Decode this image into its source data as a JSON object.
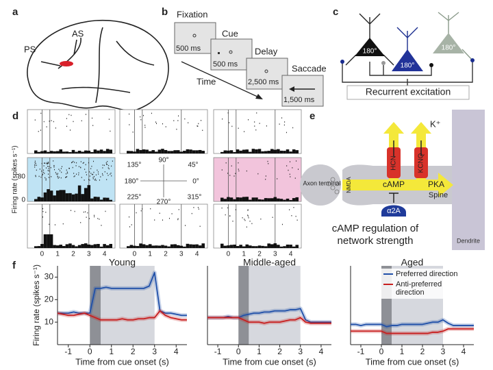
{
  "figure": {
    "a": {
      "label": "a",
      "texts": [
        "PS",
        "AS"
      ]
    },
    "b": {
      "label": "b",
      "epochs": [
        {
          "name": "Fixation",
          "duration": "500 ms"
        },
        {
          "name": "Cue",
          "duration": "500 ms"
        },
        {
          "name": "Delay",
          "duration": "2,500 ms"
        },
        {
          "name": "Saccade",
          "duration": "1,500 ms"
        }
      ],
      "time_label": "Time"
    },
    "c": {
      "label": "c",
      "neuron_labels": [
        "180°",
        "180°",
        "180°"
      ],
      "caption": "Recurrent excitation"
    },
    "d": {
      "label": "d",
      "y_label": "Firing rate (spikes s⁻¹)",
      "yticks": [
        "80",
        "0"
      ],
      "xticks": [
        "0",
        "1",
        "2",
        "3",
        "4"
      ],
      "directions": [
        "90°",
        "45°",
        "0°",
        "315°",
        "270°",
        "225°",
        "180°",
        "135°"
      ]
    },
    "e": {
      "label": "e",
      "ion": "K⁺",
      "channels": [
        "HCN",
        "KCNQ"
      ],
      "axon": "Axon terminal",
      "receptor": "NMDA",
      "messenger": "cAMP",
      "kinase": "PKA",
      "spine": "Spine",
      "alpha": "α2A",
      "caption": [
        "cAMP regulation of",
        "network strength"
      ],
      "dendrite": "Dendrite"
    },
    "f": {
      "label": "f"
    }
  },
  "chart_data": [
    {
      "type": "line",
      "title": "Young",
      "x_label": "Time from cue onset (s)",
      "y_label": "Firing rate (spikes s⁻¹)",
      "xlim": [
        -1.5,
        4.5
      ],
      "xticks": [
        -1,
        0,
        1,
        2,
        3,
        4
      ],
      "ylim": [
        0,
        35
      ],
      "yticks": [
        10,
        20,
        30
      ],
      "cue": [
        0,
        0.5
      ],
      "delay": [
        0.5,
        3
      ],
      "x": [
        -1.5,
        -1.25,
        -1,
        -0.75,
        -0.5,
        -0.25,
        0,
        0.25,
        0.5,
        0.75,
        1,
        1.25,
        1.5,
        1.75,
        2,
        2.25,
        2.5,
        2.75,
        3,
        3.25,
        3.5,
        3.75,
        4,
        4.25,
        4.5
      ],
      "series": [
        {
          "name": "Preferred direction",
          "color": "#1f4fa8",
          "values": [
            14,
            14,
            14,
            14.5,
            14,
            14,
            14,
            25,
            25,
            25.5,
            25,
            25,
            25,
            25,
            25,
            25,
            25,
            26,
            32,
            15,
            14,
            14,
            13.5,
            13,
            13
          ]
        },
        {
          "name": "Anti-preferred direction",
          "color": "#c81e1e",
          "values": [
            14,
            13.5,
            13,
            13,
            13.5,
            14,
            13,
            12,
            11,
            11,
            11,
            11,
            11.5,
            11,
            11,
            11.5,
            11.5,
            12,
            12,
            15,
            13,
            12,
            11.5,
            11,
            11
          ]
        }
      ]
    },
    {
      "type": "line",
      "title": "Middle-aged",
      "x_label": "Time from cue onset (s)",
      "xlim": [
        -1.5,
        4.5
      ],
      "xticks": [
        -1,
        0,
        1,
        2,
        3,
        4
      ],
      "ylim": [
        0,
        35
      ],
      "yticks": [],
      "cue": [
        0,
        0.5
      ],
      "delay": [
        0.5,
        3
      ],
      "x": [
        -1.5,
        -1.25,
        -1,
        -0.75,
        -0.5,
        -0.25,
        0,
        0.25,
        0.5,
        0.75,
        1,
        1.25,
        1.5,
        1.75,
        2,
        2.25,
        2.5,
        2.75,
        3,
        3.25,
        3.5,
        3.75,
        4,
        4.25,
        4.5
      ],
      "series": [
        {
          "name": "Preferred direction",
          "color": "#1f4fa8",
          "values": [
            12,
            12,
            12,
            12,
            12.5,
            12,
            12,
            13,
            13.5,
            14,
            14,
            14.5,
            14.5,
            15,
            15,
            15,
            15.5,
            15.5,
            16,
            11,
            10,
            10,
            10,
            10,
            10
          ]
        },
        {
          "name": "Anti-preferred direction",
          "color": "#c81e1e",
          "values": [
            12,
            12,
            12,
            12,
            12,
            12,
            12,
            11,
            10,
            10,
            10,
            9.5,
            10,
            10,
            10,
            10.5,
            11,
            11,
            12,
            10,
            9.5,
            9.5,
            9.5,
            9.5,
            9.5
          ]
        }
      ]
    },
    {
      "type": "line",
      "title": "Aged",
      "x_label": "Time from cue onset (s)",
      "xlim": [
        -1.5,
        4.5
      ],
      "xticks": [
        -1,
        0,
        1,
        2,
        3,
        4
      ],
      "ylim": [
        0,
        35
      ],
      "yticks": [],
      "cue": [
        0,
        0.5
      ],
      "delay": [
        0.5,
        3
      ],
      "legend": "upper right",
      "x": [
        -1.5,
        -1.25,
        -1,
        -0.75,
        -0.5,
        -0.25,
        0,
        0.25,
        0.5,
        0.75,
        1,
        1.25,
        1.5,
        1.75,
        2,
        2.25,
        2.5,
        2.75,
        3,
        3.25,
        3.5,
        3.75,
        4,
        4.25,
        4.5
      ],
      "series": [
        {
          "name": "Preferred direction",
          "color": "#1f4fa8",
          "values": [
            9,
            9,
            8.5,
            9,
            9,
            9,
            9,
            8,
            8.5,
            8.5,
            9,
            9,
            9,
            9,
            9,
            9.5,
            10,
            10,
            11,
            9.5,
            8.5,
            8.5,
            8.5,
            8.5,
            8.5
          ]
        },
        {
          "name": "Anti-preferred direction",
          "color": "#c81e1e",
          "values": [
            6,
            6,
            6,
            6,
            6,
            6,
            6,
            5,
            5,
            5,
            5,
            5,
            5,
            5,
            5,
            5,
            5.5,
            5.5,
            6,
            7,
            7,
            7,
            7,
            7,
            7
          ]
        }
      ]
    }
  ]
}
